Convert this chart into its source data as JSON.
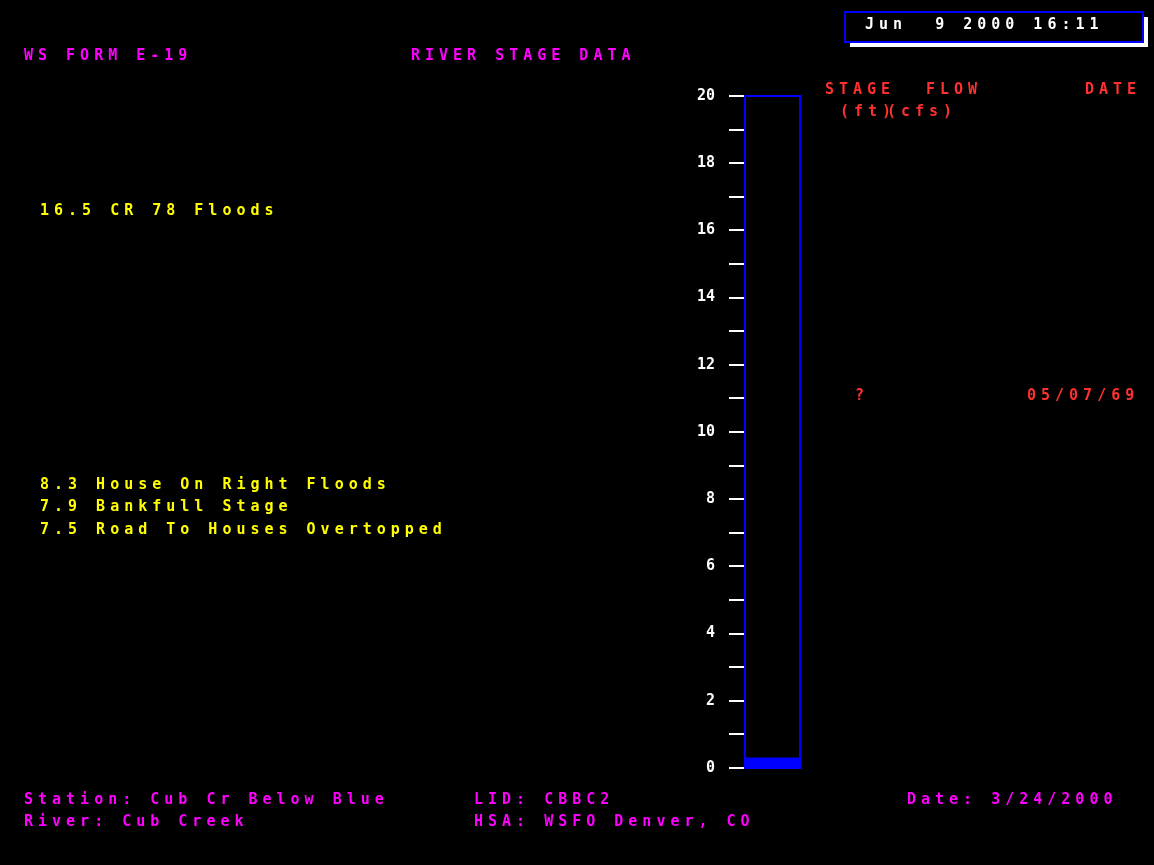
{
  "chart_data": {
    "type": "bar",
    "title": "RIVER STAGE DATA",
    "categories": [
      null
    ],
    "values": [
      0.3
    ],
    "color": "#0000ff",
    "ylim": [
      0,
      20
    ],
    "yticks": [
      0,
      {
        "value": 1,
        "label": null
      },
      2,
      {
        "value": 3,
        "label": null
      },
      4,
      {
        "value": 5,
        "label": null
      },
      6,
      {
        "value": 7,
        "label": null
      },
      8,
      {
        "value": 9,
        "label": null
      },
      10,
      {
        "value": 11,
        "label": null
      },
      12,
      {
        "value": 13,
        "label": null
      },
      14,
      {
        "value": 15,
        "label": null
      },
      16,
      {
        "value": 17,
        "label": null
      },
      18,
      {
        "value": 19,
        "label": null
      },
      20
    ],
    "annotations": [
      "WS FORM E-19",
      "Jun  9 2000 16:11",
      "16.5 CR 78 Floods",
      "8.3 House On Right Floods",
      "7.9 Bankfull Stage",
      "7.5 Road To Houses Overtopped",
      "STAGE",
      "FLOW",
      "DATE",
      "(ft)",
      "(cfs)",
      "?",
      "05/07/69",
      "Station: Cub Cr Below Blue",
      "River: Cub Creek",
      "LID: CBBC2",
      "HSA: WSFO Denver, CO",
      "Date: 3/24/2000"
    ]
  }
}
